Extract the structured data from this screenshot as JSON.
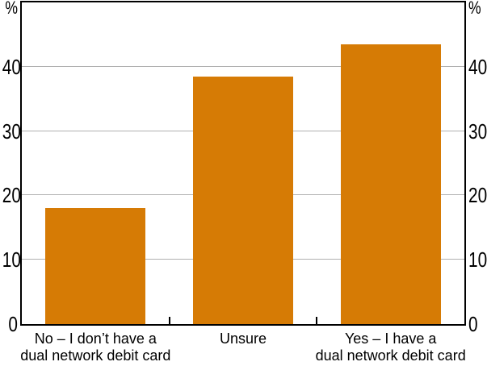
{
  "chart_data": {
    "type": "bar",
    "title": "",
    "categories": [
      "No – I don’t have a\ndual network debit card",
      "Unsure",
      "Yes – I have a\ndual network debit card"
    ],
    "values": [
      18,
      38.5,
      43.5
    ],
    "unit_left": "%",
    "unit_right": "%",
    "ylabel": "",
    "xlabel": "",
    "ylim": [
      0,
      50
    ],
    "yticks": [
      0,
      10,
      20,
      30,
      40
    ],
    "ytick_labels": [
      "0",
      "10",
      "20",
      "30",
      "40"
    ],
    "grid": true,
    "legend": "none",
    "bar_color": "#D67B05",
    "gridline_color": "#B0B0B0",
    "axis_color": "#000000"
  }
}
